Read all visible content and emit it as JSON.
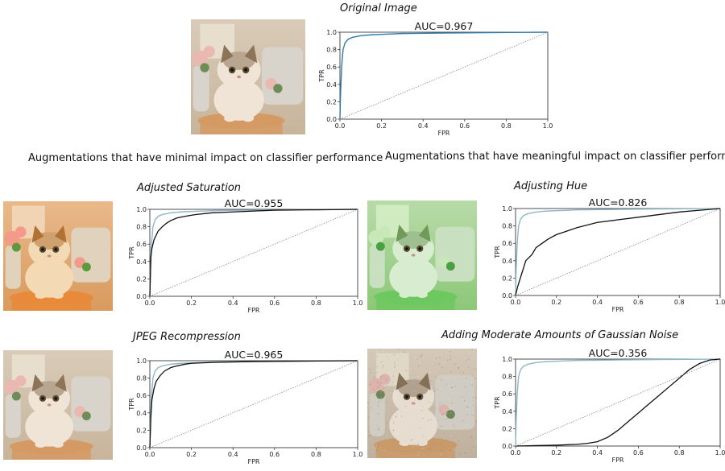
{
  "headings": {
    "minimal": "Augmentations that have minimal impact on classifier performance",
    "meaningful": "Augmentations that have meaningful impact on classifier performance"
  },
  "palette": {
    "reference_curve": "#8fb6c6",
    "augmented_curve": "#111111",
    "original_curve": "#2f7aa8",
    "chance_line": "#888888"
  },
  "panels": [
    {
      "id": "original",
      "title": "Original Image",
      "tint": "natural"
    },
    {
      "id": "saturation",
      "title": "Adjusted Saturation",
      "tint": "saturated"
    },
    {
      "id": "hue",
      "title": "Adjusting Hue",
      "tint": "green"
    },
    {
      "id": "jpeg",
      "title": "JPEG Recompression",
      "tint": "natural"
    },
    {
      "id": "noise",
      "title": "Adding Moderate Amounts of Gaussian Noise",
      "tint": "noisy"
    }
  ],
  "chart_data": [
    {
      "type": "line",
      "panel": "original",
      "title": "AUC=0.967",
      "xlabel": "FPR",
      "ylabel": "TPR",
      "xlim": [
        0,
        1
      ],
      "ylim": [
        0,
        1
      ],
      "xticks": [
        "0.0",
        "0.2",
        "0.4",
        "0.6",
        "0.8",
        "1.0"
      ],
      "yticks": [
        "0.0",
        "0.2",
        "0.4",
        "0.6",
        "0.8",
        "1.0"
      ],
      "grid": false,
      "series": [
        {
          "role": "original",
          "x": [
            0,
            0.003,
            0.008,
            0.015,
            0.025,
            0.04,
            0.06,
            0.1,
            0.15,
            0.2,
            0.3,
            0.5,
            0.7,
            1.0
          ],
          "y": [
            0,
            0.3,
            0.6,
            0.8,
            0.88,
            0.92,
            0.94,
            0.96,
            0.97,
            0.975,
            0.985,
            0.99,
            0.995,
            1.0
          ]
        },
        {
          "role": "chance",
          "x": [
            0,
            1
          ],
          "y": [
            0,
            1
          ]
        }
      ]
    },
    {
      "type": "line",
      "panel": "saturation",
      "title": "AUC=0.955",
      "xlabel": "FPR",
      "ylabel": "TPR",
      "xlim": [
        0,
        1
      ],
      "ylim": [
        0,
        1
      ],
      "xticks": [
        "0.0",
        "0.2",
        "0.4",
        "0.6",
        "0.8",
        "1.0"
      ],
      "yticks": [
        "0.0",
        "0.2",
        "0.4",
        "0.6",
        "0.8",
        "1.0"
      ],
      "grid": false,
      "series": [
        {
          "role": "reference",
          "x": [
            0,
            0.003,
            0.008,
            0.015,
            0.025,
            0.04,
            0.06,
            0.1,
            0.15,
            0.2,
            0.3,
            0.5,
            0.7,
            1.0
          ],
          "y": [
            0,
            0.3,
            0.6,
            0.8,
            0.88,
            0.92,
            0.94,
            0.96,
            0.97,
            0.975,
            0.985,
            0.99,
            0.995,
            1.0
          ]
        },
        {
          "role": "augmented",
          "x": [
            0,
            0.005,
            0.01,
            0.02,
            0.04,
            0.06,
            0.08,
            0.1,
            0.13,
            0.17,
            0.22,
            0.3,
            0.4,
            0.5,
            0.6,
            0.8,
            1.0
          ],
          "y": [
            0,
            0.45,
            0.55,
            0.65,
            0.75,
            0.8,
            0.84,
            0.87,
            0.9,
            0.92,
            0.94,
            0.96,
            0.97,
            0.98,
            0.99,
            0.995,
            1.0
          ]
        },
        {
          "role": "chance",
          "x": [
            0,
            1
          ],
          "y": [
            0,
            1
          ]
        }
      ]
    },
    {
      "type": "line",
      "panel": "hue",
      "title": "AUC=0.826",
      "xlabel": "FPR",
      "ylabel": "TPR",
      "xlim": [
        0,
        1
      ],
      "ylim": [
        0,
        1
      ],
      "xticks": [
        "0.0",
        "0.2",
        "0.4",
        "0.6",
        "0.8",
        "1.0"
      ],
      "yticks": [
        "0.0",
        "0.2",
        "0.4",
        "0.6",
        "0.8",
        "1.0"
      ],
      "grid": false,
      "series": [
        {
          "role": "reference",
          "x": [
            0,
            0.003,
            0.008,
            0.015,
            0.025,
            0.04,
            0.06,
            0.1,
            0.15,
            0.2,
            0.3,
            0.5,
            0.7,
            1.0
          ],
          "y": [
            0,
            0.3,
            0.6,
            0.8,
            0.88,
            0.92,
            0.94,
            0.96,
            0.97,
            0.975,
            0.985,
            0.99,
            0.995,
            1.0
          ]
        },
        {
          "role": "augmented",
          "x": [
            0,
            0.01,
            0.03,
            0.05,
            0.08,
            0.1,
            0.13,
            0.16,
            0.2,
            0.25,
            0.3,
            0.35,
            0.4,
            0.5,
            0.6,
            0.7,
            0.8,
            0.9,
            1.0
          ],
          "y": [
            0,
            0.1,
            0.25,
            0.4,
            0.47,
            0.55,
            0.6,
            0.65,
            0.7,
            0.74,
            0.78,
            0.81,
            0.84,
            0.87,
            0.9,
            0.93,
            0.96,
            0.98,
            1.0
          ]
        },
        {
          "role": "chance",
          "x": [
            0,
            1
          ],
          "y": [
            0,
            1
          ]
        }
      ]
    },
    {
      "type": "line",
      "panel": "jpeg",
      "title": "AUC=0.965",
      "xlabel": "FPR",
      "ylabel": "TPR",
      "xlim": [
        0,
        1
      ],
      "ylim": [
        0,
        1
      ],
      "xticks": [
        "0.0",
        "0.2",
        "0.4",
        "0.6",
        "0.8",
        "1.0"
      ],
      "yticks": [
        "0.0",
        "0.2",
        "0.4",
        "0.6",
        "0.8",
        "1.0"
      ],
      "grid": false,
      "series": [
        {
          "role": "reference",
          "x": [
            0,
            0.003,
            0.008,
            0.015,
            0.025,
            0.04,
            0.06,
            0.1,
            0.15,
            0.2,
            0.3,
            0.5,
            0.7,
            1.0
          ],
          "y": [
            0,
            0.3,
            0.6,
            0.8,
            0.88,
            0.92,
            0.94,
            0.96,
            0.97,
            0.975,
            0.985,
            0.99,
            0.995,
            1.0
          ]
        },
        {
          "role": "augmented",
          "x": [
            0,
            0.005,
            0.01,
            0.02,
            0.03,
            0.05,
            0.07,
            0.1,
            0.13,
            0.17,
            0.2,
            0.3,
            0.5,
            0.7,
            1.0
          ],
          "y": [
            0,
            0.35,
            0.55,
            0.68,
            0.76,
            0.83,
            0.88,
            0.92,
            0.94,
            0.96,
            0.97,
            0.98,
            0.99,
            0.995,
            1.0
          ]
        },
        {
          "role": "chance",
          "x": [
            0,
            1
          ],
          "y": [
            0,
            1
          ]
        }
      ]
    },
    {
      "type": "line",
      "panel": "noise",
      "title": "AUC=0.356",
      "xlabel": "FPR",
      "ylabel": "TPR",
      "xlim": [
        0,
        1
      ],
      "ylim": [
        0,
        1
      ],
      "xticks": [
        "0.0",
        "0.2",
        "0.4",
        "0.6",
        "0.8",
        "1.0"
      ],
      "yticks": [
        "0.0",
        "0.2",
        "0.4",
        "0.6",
        "0.8",
        "1.0"
      ],
      "grid": false,
      "series": [
        {
          "role": "reference",
          "x": [
            0,
            0.003,
            0.008,
            0.015,
            0.025,
            0.04,
            0.06,
            0.1,
            0.15,
            0.2,
            0.3,
            0.5,
            0.7,
            1.0
          ],
          "y": [
            0,
            0.3,
            0.6,
            0.8,
            0.88,
            0.92,
            0.94,
            0.96,
            0.97,
            0.975,
            0.985,
            0.99,
            0.995,
            1.0
          ]
        },
        {
          "role": "augmented",
          "x": [
            0,
            0.1,
            0.2,
            0.3,
            0.35,
            0.4,
            0.45,
            0.5,
            0.55,
            0.6,
            0.65,
            0.7,
            0.75,
            0.8,
            0.85,
            0.9,
            0.95,
            1.0
          ],
          "y": [
            0,
            0.005,
            0.01,
            0.02,
            0.03,
            0.05,
            0.1,
            0.18,
            0.28,
            0.38,
            0.48,
            0.58,
            0.68,
            0.78,
            0.88,
            0.95,
            0.99,
            1.0
          ]
        },
        {
          "role": "chance",
          "x": [
            0,
            1
          ],
          "y": [
            0,
            1
          ]
        }
      ]
    }
  ]
}
